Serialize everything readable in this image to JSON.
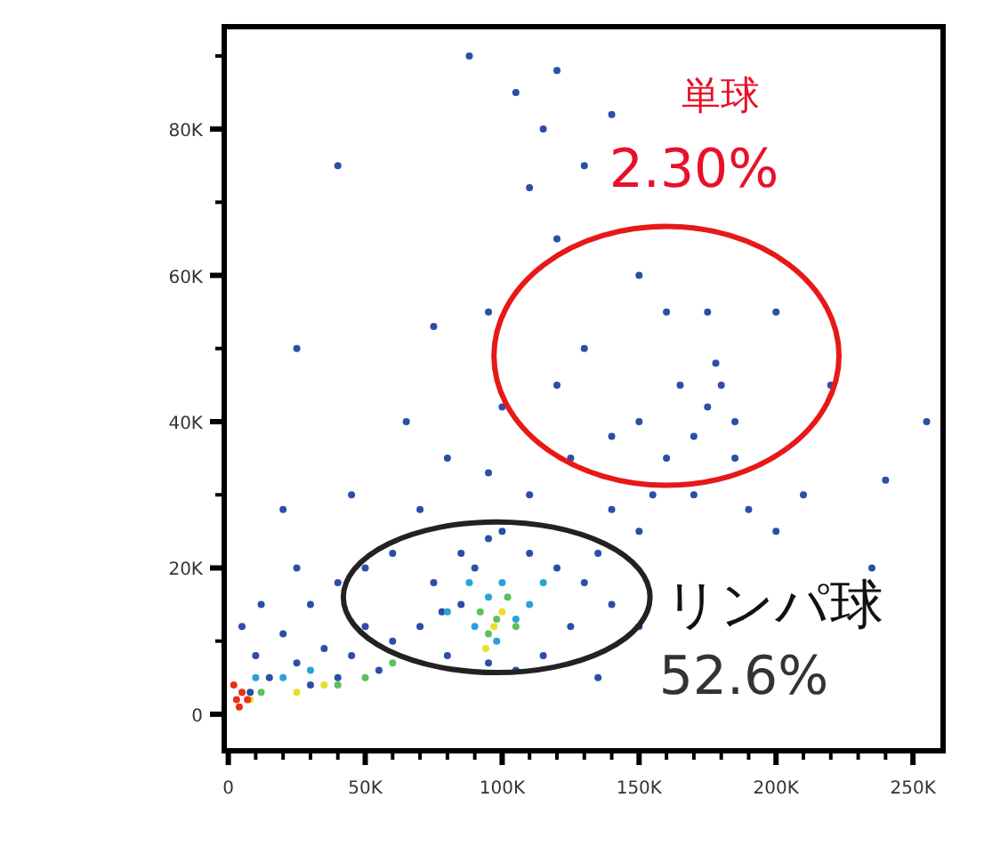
{
  "chart_data": {
    "type": "scatter",
    "marker": "circle",
    "grid": false,
    "xlim": [
      -1500,
      261000
    ],
    "ylim": [
      -5000,
      94000
    ],
    "xticks": [
      {
        "value": 0,
        "label": "0"
      },
      {
        "value": 10000,
        "label": null
      },
      {
        "value": 20000,
        "label": null
      },
      {
        "value": 30000,
        "label": null
      },
      {
        "value": 40000,
        "label": null
      },
      {
        "value": 50000,
        "label": "50K"
      },
      {
        "value": 60000,
        "label": null
      },
      {
        "value": 70000,
        "label": null
      },
      {
        "value": 80000,
        "label": null
      },
      {
        "value": 90000,
        "label": null
      },
      {
        "value": 100000,
        "label": "100K"
      },
      {
        "value": 110000,
        "label": null
      },
      {
        "value": 120000,
        "label": null
      },
      {
        "value": 130000,
        "label": null
      },
      {
        "value": 140000,
        "label": null
      },
      {
        "value": 150000,
        "label": "150K"
      },
      {
        "value": 160000,
        "label": null
      },
      {
        "value": 170000,
        "label": null
      },
      {
        "value": 180000,
        "label": null
      },
      {
        "value": 190000,
        "label": null
      },
      {
        "value": 200000,
        "label": "200K"
      },
      {
        "value": 210000,
        "label": null
      },
      {
        "value": 220000,
        "label": null
      },
      {
        "value": 230000,
        "label": null
      },
      {
        "value": 240000,
        "label": null
      },
      {
        "value": 250000,
        "label": "250K"
      }
    ],
    "yticks": [
      {
        "value": 0,
        "label": "0"
      },
      {
        "value": 10000,
        "label": null
      },
      {
        "value": 20000,
        "label": "20K"
      },
      {
        "value": 30000,
        "label": null
      },
      {
        "value": 40000,
        "label": "40K"
      },
      {
        "value": 50000,
        "label": null
      },
      {
        "value": 60000,
        "label": "60K"
      },
      {
        "value": 70000,
        "label": null
      },
      {
        "value": 80000,
        "label": "80K"
      },
      {
        "value": 90000,
        "label": null
      }
    ],
    "annotations": [
      "単球",
      "2.30%",
      "リンパ球",
      "52.6%"
    ],
    "series": [
      {
        "color": "#2b4fa8",
        "x": [
          70000,
          75000,
          80000,
          85000,
          90000,
          95000,
          100000,
          110000,
          120000,
          130000,
          125000,
          115000,
          105000,
          95000,
          85000,
          78000,
          140000,
          135000,
          60000,
          55000,
          50000,
          45000,
          40000,
          35000,
          30000,
          25000,
          20000,
          15000,
          10000,
          8000,
          5000,
          12000,
          30000,
          40000,
          50000,
          25000,
          60000,
          20000,
          45000,
          70000,
          80000,
          95000,
          110000,
          125000,
          140000,
          150000,
          65000,
          100000,
          120000,
          130000,
          140000,
          150000,
          160000,
          170000,
          175000,
          180000,
          185000,
          178000,
          165000,
          155000,
          190000,
          200000,
          210000,
          170000,
          185000,
          160000,
          175000,
          150000,
          120000,
          110000,
          115000,
          105000,
          120000,
          40000,
          25000,
          75000,
          95000,
          130000,
          140000,
          200000,
          220000,
          240000,
          255000,
          88000,
          235000,
          135000,
          150000
        ],
        "values": [
          12000,
          18000,
          8000,
          22000,
          20000,
          24000,
          25000,
          22000,
          20000,
          18000,
          12000,
          8000,
          6000,
          7000,
          15000,
          14000,
          15000,
          22000,
          10000,
          6000,
          12000,
          8000,
          5000,
          9000,
          4000,
          7000,
          11000,
          5000,
          8000,
          3000,
          12000,
          15000,
          15000,
          18000,
          20000,
          20000,
          22000,
          28000,
          30000,
          28000,
          35000,
          33000,
          30000,
          35000,
          28000,
          25000,
          40000,
          42000,
          45000,
          50000,
          38000,
          40000,
          35000,
          38000,
          42000,
          45000,
          40000,
          48000,
          45000,
          30000,
          28000,
          25000,
          30000,
          30000,
          35000,
          55000,
          55000,
          60000,
          65000,
          72000,
          80000,
          85000,
          88000,
          75000,
          50000,
          53000,
          55000,
          75000,
          82000,
          55000,
          45000,
          32000,
          40000,
          90000,
          20000,
          5000,
          12000
        ]
      },
      {
        "color": "#2aa3d8",
        "x": [
          80000,
          90000,
          95000,
          100000,
          105000,
          110000,
          88000,
          20000,
          30000,
          10000,
          98000,
          115000
        ],
        "values": [
          14000,
          12000,
          16000,
          18000,
          13000,
          15000,
          18000,
          5000,
          6000,
          5000,
          10000,
          18000
        ]
      },
      {
        "color": "#5cc05c",
        "x": [
          92000,
          98000,
          102000,
          95000,
          105000,
          40000,
          50000,
          60000,
          12000
        ],
        "values": [
          14000,
          13000,
          16000,
          11000,
          12000,
          4000,
          5000,
          7000,
          3000
        ]
      },
      {
        "color": "#e6e02a",
        "x": [
          97000,
          100000,
          94000,
          25000,
          35000,
          8000
        ],
        "values": [
          12000,
          14000,
          9000,
          3000,
          4000,
          2000
        ]
      },
      {
        "color": "#e83018",
        "x": [
          3000,
          5000,
          4000,
          7000,
          2000
        ],
        "values": [
          2000,
          3000,
          1000,
          2000,
          4000
        ]
      }
    ]
  }
}
